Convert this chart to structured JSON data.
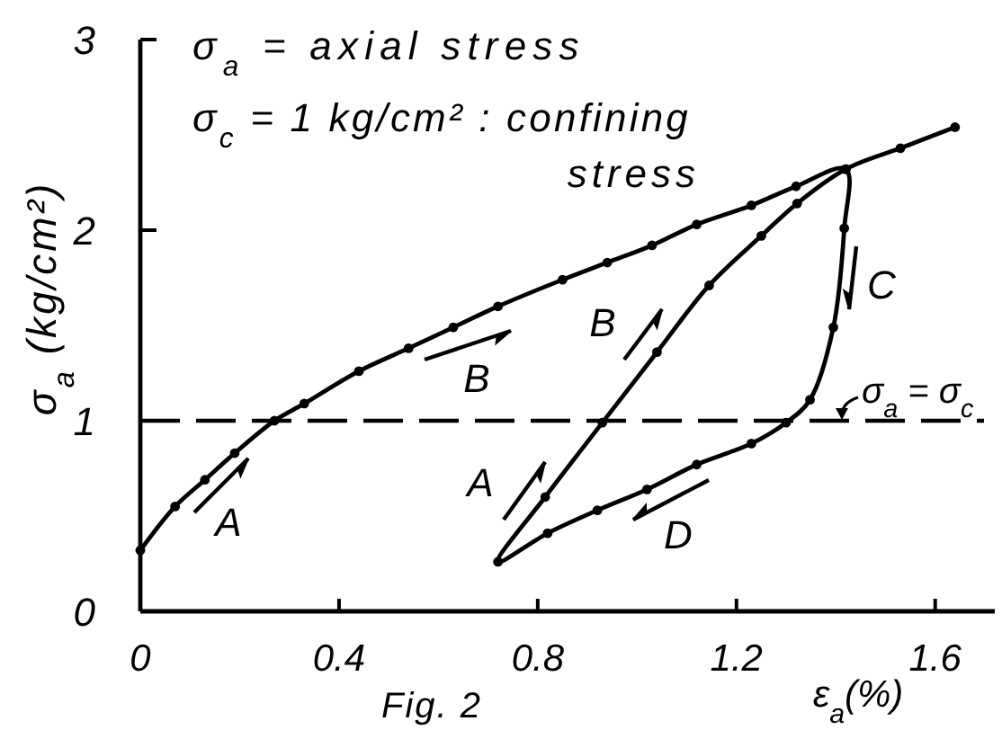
{
  "chart_data": {
    "type": "line",
    "xlabel": "ε$_{a}$(%)",
    "ylabel": "σ$_{a}$ (kg/cm²)",
    "xlim": [
      0,
      1.72
    ],
    "ylim": [
      0,
      3
    ],
    "xticks": [
      0,
      0.4,
      0.8,
      1.2,
      1.6
    ],
    "yticks": [
      0,
      1,
      2,
      3
    ],
    "marker": "circle",
    "line_style": "solid",
    "series": [
      {
        "color": "#000000",
        "x": [
          0,
          0.07,
          0.13,
          0.19,
          0.27,
          0.33,
          0.44,
          0.54,
          0.63,
          0.72,
          0.85,
          0.94,
          1.03,
          1.12,
          1.23,
          1.32,
          1.42,
          1.417,
          1.395,
          1.348,
          1.3,
          1.23,
          1.12,
          1.02,
          0.92,
          0.82,
          0.72,
          0.815,
          0.93,
          1.04,
          1.145,
          1.25,
          1.322,
          1.42,
          1.53,
          1.64
        ],
        "values": [
          0.32,
          0.55,
          0.69,
          0.83,
          1.0,
          1.09,
          1.26,
          1.38,
          1.49,
          1.6,
          1.74,
          1.83,
          1.92,
          2.03,
          2.13,
          2.23,
          2.32,
          2.01,
          1.49,
          1.11,
          0.99,
          0.88,
          0.77,
          0.64,
          0.53,
          0.41,
          0.26,
          0.6,
          0.99,
          1.36,
          1.71,
          1.97,
          2.14,
          2.32,
          2.43,
          2.54
        ]
      }
    ],
    "ref_lines": [
      {
        "axis": "y",
        "value": 1,
        "label": "σ$_{a}$ = σ$_{c}$",
        "line_style": "dashed",
        "color": "#000000"
      }
    ],
    "annotations": [
      "σ$_{a}$ = axial stress",
      "σ$_{c}$ = 1 kg/cm² : confining stress",
      "A",
      "B",
      "A",
      "B",
      "C",
      "D",
      "Fig. 2"
    ]
  }
}
